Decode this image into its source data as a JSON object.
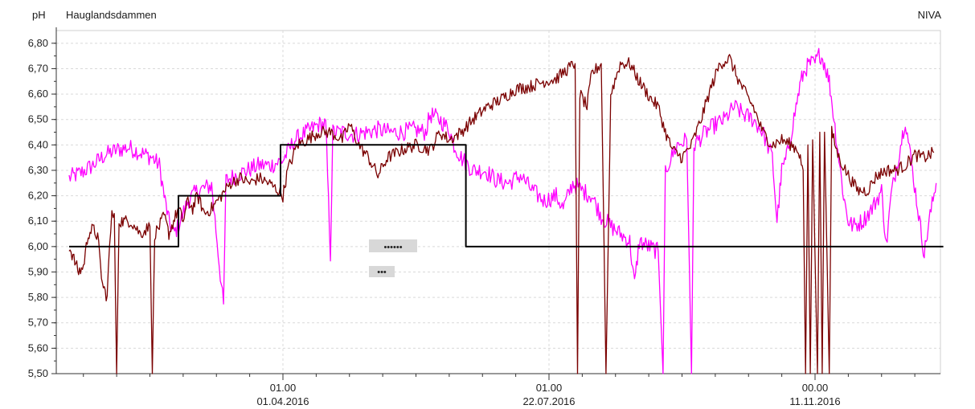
{
  "header": {
    "unit": "pH",
    "station": "Hauglandsdammen",
    "source": "NIVA"
  },
  "legend_placeholders": [
    "••••••",
    "•••"
  ],
  "colors": {
    "series_dark": "#7a0000",
    "series_magenta": "#ff00ff",
    "series_step": "#000000",
    "grid": "#d9d9d9",
    "axis": "#333333"
  },
  "chart_data": {
    "type": "line",
    "title": "Hauglandsdammen",
    "ylabel": "pH",
    "ylim": [
      5.5,
      6.85
    ],
    "y_ticks": [
      "6,80",
      "6,70",
      "6,60",
      "6,50",
      "6,40",
      "6,30",
      "6,20",
      "6,10",
      "6,00",
      "5,90",
      "5,80",
      "5,70",
      "5,60",
      "5,50"
    ],
    "x_ticks": [
      {
        "x": 0,
        "time": "01.00",
        "date": "01.04.2016"
      },
      {
        "x": 112,
        "time": "01.00",
        "date": "22.07.2016"
      },
      {
        "x": 224,
        "time": "00.00",
        "date": "11.11.2016"
      }
    ],
    "xlim": [
      -90,
      278
    ],
    "grid": true,
    "series": [
      {
        "id": "dark",
        "noise": 0.025,
        "points": [
          [
            -90,
            6.0
          ],
          [
            -88,
            5.95
          ],
          [
            -86,
            5.9
          ],
          [
            -84,
            5.92
          ],
          [
            -82,
            6.05
          ],
          [
            -80,
            6.07
          ],
          [
            -78,
            6.04
          ],
          [
            -76,
            5.85
          ],
          [
            -74,
            5.8
          ],
          [
            -73,
            6.0
          ],
          [
            -72,
            6.12
          ],
          [
            -71,
            6.13
          ],
          [
            -70,
            5.5
          ],
          [
            -69,
            6.1
          ],
          [
            -67,
            6.1
          ],
          [
            -64,
            6.1
          ],
          [
            -60,
            6.05
          ],
          [
            -56,
            6.08
          ],
          [
            -55,
            5.5
          ],
          [
            -54,
            6.05
          ],
          [
            -52,
            6.08
          ],
          [
            -50,
            6.12
          ],
          [
            -48,
            6.05
          ],
          [
            -46,
            6.1
          ],
          [
            -44,
            6.15
          ],
          [
            -42,
            6.1
          ],
          [
            -40,
            6.18
          ],
          [
            -38,
            6.15
          ],
          [
            -36,
            6.2
          ],
          [
            -33,
            6.13
          ],
          [
            -30,
            6.15
          ],
          [
            -26,
            6.2
          ],
          [
            -22,
            6.25
          ],
          [
            -18,
            6.27
          ],
          [
            -14,
            6.25
          ],
          [
            -10,
            6.27
          ],
          [
            -6,
            6.25
          ],
          [
            -2,
            6.22
          ],
          [
            0,
            6.2
          ],
          [
            2,
            6.3
          ],
          [
            6,
            6.4
          ],
          [
            10,
            6.42
          ],
          [
            15,
            6.45
          ],
          [
            20,
            6.45
          ],
          [
            25,
            6.42
          ],
          [
            28,
            6.48
          ],
          [
            32,
            6.4
          ],
          [
            36,
            6.35
          ],
          [
            40,
            6.28
          ],
          [
            44,
            6.35
          ],
          [
            50,
            6.38
          ],
          [
            56,
            6.4
          ],
          [
            62,
            6.38
          ],
          [
            66,
            6.45
          ],
          [
            70,
            6.42
          ],
          [
            75,
            6.45
          ],
          [
            80,
            6.5
          ],
          [
            86,
            6.55
          ],
          [
            92,
            6.58
          ],
          [
            98,
            6.62
          ],
          [
            104,
            6.63
          ],
          [
            110,
            6.65
          ],
          [
            115,
            6.66
          ],
          [
            120,
            6.7
          ],
          [
            123,
            6.72
          ],
          [
            124,
            5.5
          ],
          [
            125,
            6.6
          ],
          [
            128,
            6.55
          ],
          [
            130,
            6.68
          ],
          [
            134,
            6.72
          ],
          [
            136,
            5.5
          ],
          [
            138,
            6.6
          ],
          [
            142,
            6.72
          ],
          [
            146,
            6.72
          ],
          [
            150,
            6.65
          ],
          [
            155,
            6.58
          ],
          [
            158,
            6.55
          ],
          [
            161,
            6.45
          ],
          [
            164,
            6.38
          ],
          [
            168,
            6.35
          ],
          [
            172,
            6.4
          ],
          [
            176,
            6.5
          ],
          [
            180,
            6.62
          ],
          [
            184,
            6.72
          ],
          [
            188,
            6.74
          ],
          [
            192,
            6.65
          ],
          [
            196,
            6.58
          ],
          [
            198,
            6.55
          ],
          [
            202,
            6.45
          ],
          [
            206,
            6.4
          ],
          [
            210,
            6.42
          ],
          [
            214,
            6.4
          ],
          [
            217,
            6.38
          ],
          [
            219,
            6.3
          ],
          [
            220,
            5.5
          ],
          [
            221,
            6.4
          ],
          [
            222,
            5.5
          ],
          [
            223,
            6.42
          ],
          [
            225,
            5.5
          ],
          [
            226,
            6.45
          ],
          [
            227,
            5.5
          ],
          [
            228,
            6.45
          ],
          [
            230,
            5.5
          ],
          [
            231,
            6.45
          ],
          [
            234,
            6.35
          ],
          [
            238,
            6.28
          ],
          [
            242,
            6.22
          ],
          [
            246,
            6.22
          ],
          [
            250,
            6.28
          ],
          [
            254,
            6.3
          ],
          [
            258,
            6.3
          ],
          [
            262,
            6.32
          ],
          [
            266,
            6.36
          ],
          [
            270,
            6.35
          ],
          [
            274,
            6.37
          ]
        ]
      },
      {
        "id": "magenta",
        "noise": 0.035,
        "points": [
          [
            -90,
            6.27
          ],
          [
            -85,
            6.29
          ],
          [
            -80,
            6.32
          ],
          [
            -75,
            6.36
          ],
          [
            -70,
            6.38
          ],
          [
            -65,
            6.39
          ],
          [
            -60,
            6.37
          ],
          [
            -55,
            6.35
          ],
          [
            -52,
            6.32
          ],
          [
            -50,
            6.2
          ],
          [
            -48,
            6.1
          ],
          [
            -46,
            6.05
          ],
          [
            -44,
            6.08
          ],
          [
            -40,
            6.18
          ],
          [
            -36,
            6.22
          ],
          [
            -30,
            6.24
          ],
          [
            -25,
            5.76
          ],
          [
            -24,
            6.26
          ],
          [
            -20,
            6.28
          ],
          [
            -15,
            6.3
          ],
          [
            -10,
            6.32
          ],
          [
            -5,
            6.32
          ],
          [
            0,
            6.34
          ],
          [
            5,
            6.42
          ],
          [
            10,
            6.45
          ],
          [
            15,
            6.48
          ],
          [
            18,
            6.48
          ],
          [
            20,
            5.97
          ],
          [
            21,
            6.45
          ],
          [
            25,
            6.45
          ],
          [
            30,
            6.44
          ],
          [
            35,
            6.45
          ],
          [
            40,
            6.46
          ],
          [
            45,
            6.45
          ],
          [
            50,
            6.45
          ],
          [
            55,
            6.46
          ],
          [
            60,
            6.45
          ],
          [
            62,
            6.52
          ],
          [
            66,
            6.5
          ],
          [
            70,
            6.46
          ],
          [
            72,
            6.4
          ],
          [
            75,
            6.35
          ],
          [
            80,
            6.3
          ],
          [
            85,
            6.3
          ],
          [
            90,
            6.26
          ],
          [
            95,
            6.25
          ],
          [
            100,
            6.28
          ],
          [
            105,
            6.22
          ],
          [
            110,
            6.18
          ],
          [
            115,
            6.2
          ],
          [
            118,
            6.15
          ],
          [
            122,
            6.25
          ],
          [
            126,
            6.22
          ],
          [
            130,
            6.2
          ],
          [
            134,
            6.12
          ],
          [
            138,
            6.08
          ],
          [
            142,
            6.05
          ],
          [
            146,
            6.02
          ],
          [
            148,
            5.85
          ],
          [
            150,
            6.02
          ],
          [
            154,
            6.0
          ],
          [
            158,
            5.98
          ],
          [
            160,
            5.5
          ],
          [
            161,
            6.3
          ],
          [
            166,
            6.4
          ],
          [
            170,
            6.42
          ],
          [
            172,
            5.5
          ],
          [
            173,
            6.4
          ],
          [
            178,
            6.45
          ],
          [
            182,
            6.48
          ],
          [
            186,
            6.5
          ],
          [
            190,
            6.55
          ],
          [
            194,
            6.52
          ],
          [
            198,
            6.5
          ],
          [
            202,
            6.45
          ],
          [
            206,
            6.35
          ],
          [
            208,
            6.1
          ],
          [
            210,
            6.3
          ],
          [
            212,
            6.35
          ],
          [
            216,
            6.55
          ],
          [
            218,
            6.65
          ],
          [
            220,
            6.7
          ],
          [
            222,
            6.72
          ],
          [
            224,
            6.72
          ],
          [
            226,
            6.76
          ],
          [
            228,
            6.72
          ],
          [
            230,
            6.65
          ],
          [
            232,
            6.5
          ],
          [
            234,
            6.35
          ],
          [
            236,
            6.2
          ],
          [
            238,
            6.1
          ],
          [
            240,
            6.08
          ],
          [
            244,
            6.1
          ],
          [
            248,
            6.15
          ],
          [
            252,
            6.22
          ],
          [
            254,
            6.0
          ],
          [
            256,
            6.2
          ],
          [
            260,
            6.4
          ],
          [
            262,
            6.5
          ],
          [
            265,
            6.3
          ],
          [
            268,
            6.1
          ],
          [
            270,
            5.97
          ],
          [
            272,
            6.1
          ],
          [
            275,
            6.25
          ]
        ]
      },
      {
        "id": "step",
        "points": [
          [
            -90,
            6.0
          ],
          [
            -44,
            6.0
          ],
          [
            -44,
            6.2
          ],
          [
            -1,
            6.2
          ],
          [
            -1,
            6.4
          ],
          [
            77,
            6.4
          ],
          [
            77,
            6.0
          ],
          [
            278,
            6.0
          ]
        ]
      }
    ]
  }
}
